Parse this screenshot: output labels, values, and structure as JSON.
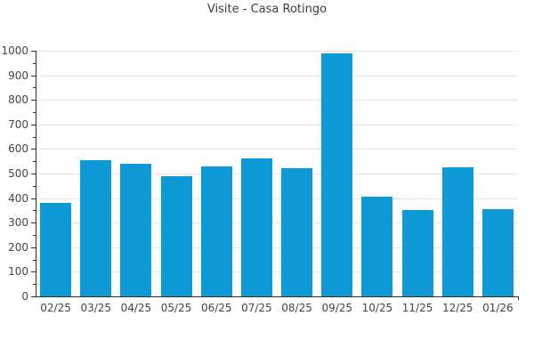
{
  "chart_data": {
    "type": "bar",
    "title": "Visite - Casa Rotingo",
    "xlabel": "",
    "ylabel": "",
    "categories": [
      "02/25",
      "03/25",
      "04/25",
      "05/25",
      "06/25",
      "07/25",
      "08/25",
      "09/25",
      "10/25",
      "11/25",
      "12/25",
      "01/26"
    ],
    "values": [
      380,
      555,
      540,
      490,
      530,
      560,
      520,
      990,
      405,
      350,
      525,
      355
    ],
    "ylim": [
      0,
      1000
    ],
    "ytick_step": 100,
    "yminor_step": 50,
    "ytick_labels": [
      "0",
      "100",
      "200",
      "300",
      "400",
      "500",
      "600",
      "700",
      "800",
      "900",
      "1000"
    ],
    "grid": true,
    "legend": false,
    "series_name": "Visite"
  },
  "colors": {
    "bar": "#0d9ad6",
    "grid": "#e5e5e5",
    "axis": "#2e2e2e",
    "title_text": "#3d3d3d",
    "tick_text": "#444444",
    "background": "#ffffff"
  }
}
